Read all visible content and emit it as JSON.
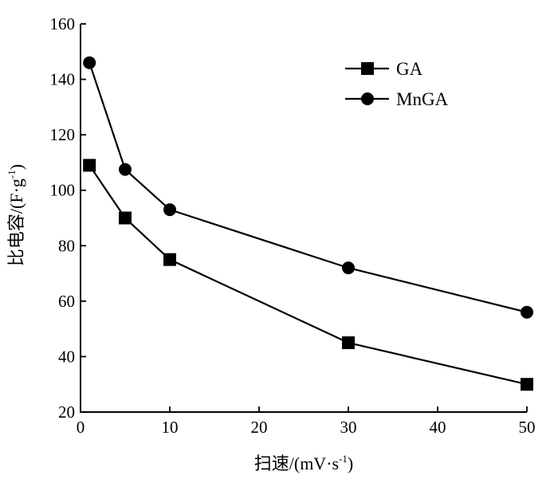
{
  "chart_data": {
    "type": "line",
    "xlabel": "扫速/(mV·s",
    "xlabel_sup": "-1",
    "xlabel_close": ")",
    "ylabel": "比电容/(F·g",
    "ylabel_sup": "-1",
    "ylabel_close": ")",
    "xlim": [
      0,
      50
    ],
    "ylim": [
      20,
      160
    ],
    "xticks": [
      0,
      10,
      20,
      30,
      40,
      50
    ],
    "yticks": [
      20,
      40,
      60,
      80,
      100,
      120,
      140,
      160
    ],
    "legend_position": "top-right",
    "series": [
      {
        "name": "GA",
        "marker": "square",
        "x": [
          1,
          5,
          10,
          30,
          50
        ],
        "y": [
          109,
          90,
          75,
          45,
          30
        ]
      },
      {
        "name": "MnGA",
        "marker": "circle",
        "x": [
          1,
          5,
          10,
          30,
          50
        ],
        "y": [
          146,
          107.5,
          93,
          72,
          56
        ]
      }
    ]
  }
}
